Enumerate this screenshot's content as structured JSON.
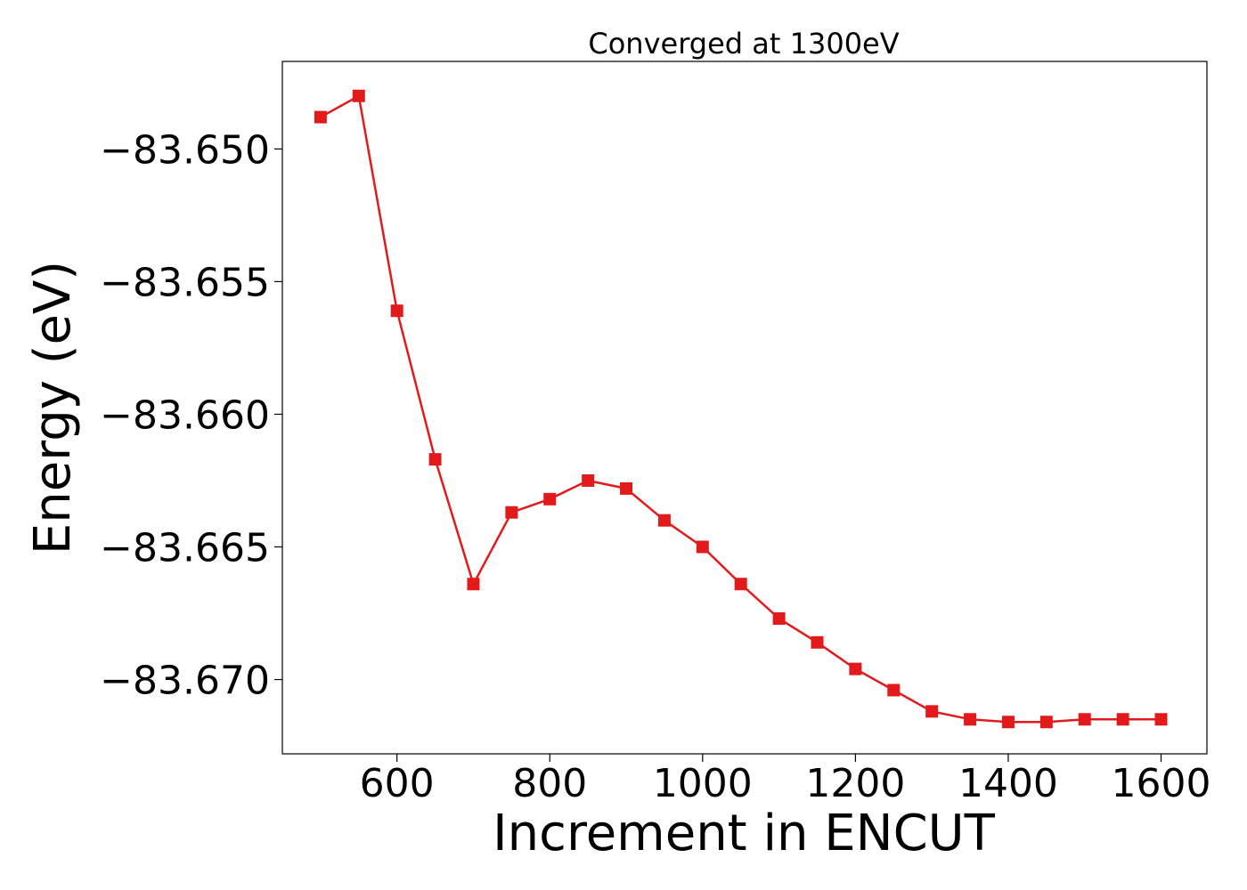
{
  "chart_data": {
    "type": "line",
    "title": "Converged at 1300eV",
    "xlabel": "Increment in ENCUT",
    "ylabel": "Energy (eV)",
    "xlim": [
      450,
      1660
    ],
    "ylim": [
      -83.6728,
      -83.6467
    ],
    "x_ticks": [
      600,
      800,
      1000,
      1200,
      1400,
      1600
    ],
    "x_tick_labels": [
      "600",
      "800",
      "1000",
      "1200",
      "1400",
      "1600"
    ],
    "y_ticks": [
      -83.65,
      -83.655,
      -83.66,
      -83.665,
      -83.67
    ],
    "y_tick_labels": [
      "−83.650",
      "−83.655",
      "−83.660",
      "−83.665",
      "−83.670"
    ],
    "grid": false,
    "marker": "square",
    "series": [
      {
        "color": "#e31a1c",
        "x": [
          500,
          550,
          600,
          650,
          700,
          750,
          800,
          850,
          900,
          950,
          1000,
          1050,
          1100,
          1150,
          1200,
          1250,
          1300,
          1350,
          1400,
          1450,
          1500,
          1550,
          1600
        ],
        "y": [
          -83.6488,
          -83.648,
          -83.6561,
          -83.6617,
          -83.6664,
          -83.6637,
          -83.6632,
          -83.6625,
          -83.6628,
          -83.664,
          -83.665,
          -83.6664,
          -83.6677,
          -83.6686,
          -83.6696,
          -83.6704,
          -83.6712,
          -83.6715,
          -83.6716,
          -83.6716,
          -83.6715,
          -83.6715,
          -83.6715
        ]
      }
    ]
  }
}
